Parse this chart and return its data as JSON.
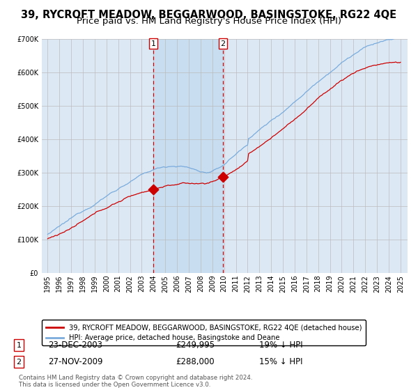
{
  "title": "39, RYCROFT MEADOW, BEGGARWOOD, BASINGSTOKE, RG22 4QE",
  "subtitle": "Price paid vs. HM Land Registry's House Price Index (HPI)",
  "legend_label_red": "39, RYCROFT MEADOW, BEGGARWOOD, BASINGSTOKE, RG22 4QE (detached house)",
  "legend_label_blue": "HPI: Average price, detached house, Basingstoke and Deane",
  "transaction1_date": "23-DEC-2003",
  "transaction1_price": 249995,
  "transaction1_pct": "19% ↓ HPI",
  "transaction2_date": "27-NOV-2009",
  "transaction2_price": 288000,
  "transaction2_pct": "15% ↓ HPI",
  "footer": "Contains HM Land Registry data © Crown copyright and database right 2024.\nThis data is licensed under the Open Government Licence v3.0.",
  "ylim": [
    0,
    700000
  ],
  "yticks": [
    0,
    100000,
    200000,
    300000,
    400000,
    500000,
    600000,
    700000
  ],
  "background_color": "#ffffff",
  "plot_background": "#dce9f5",
  "grid_color": "#bbbbbb",
  "red_color": "#cc0000",
  "blue_color": "#7aabdc",
  "shade_color": "#c8ddf0",
  "transaction1_x": 2003.97,
  "transaction2_x": 2009.9,
  "title_fontsize": 10.5,
  "subtitle_fontsize": 9.5
}
